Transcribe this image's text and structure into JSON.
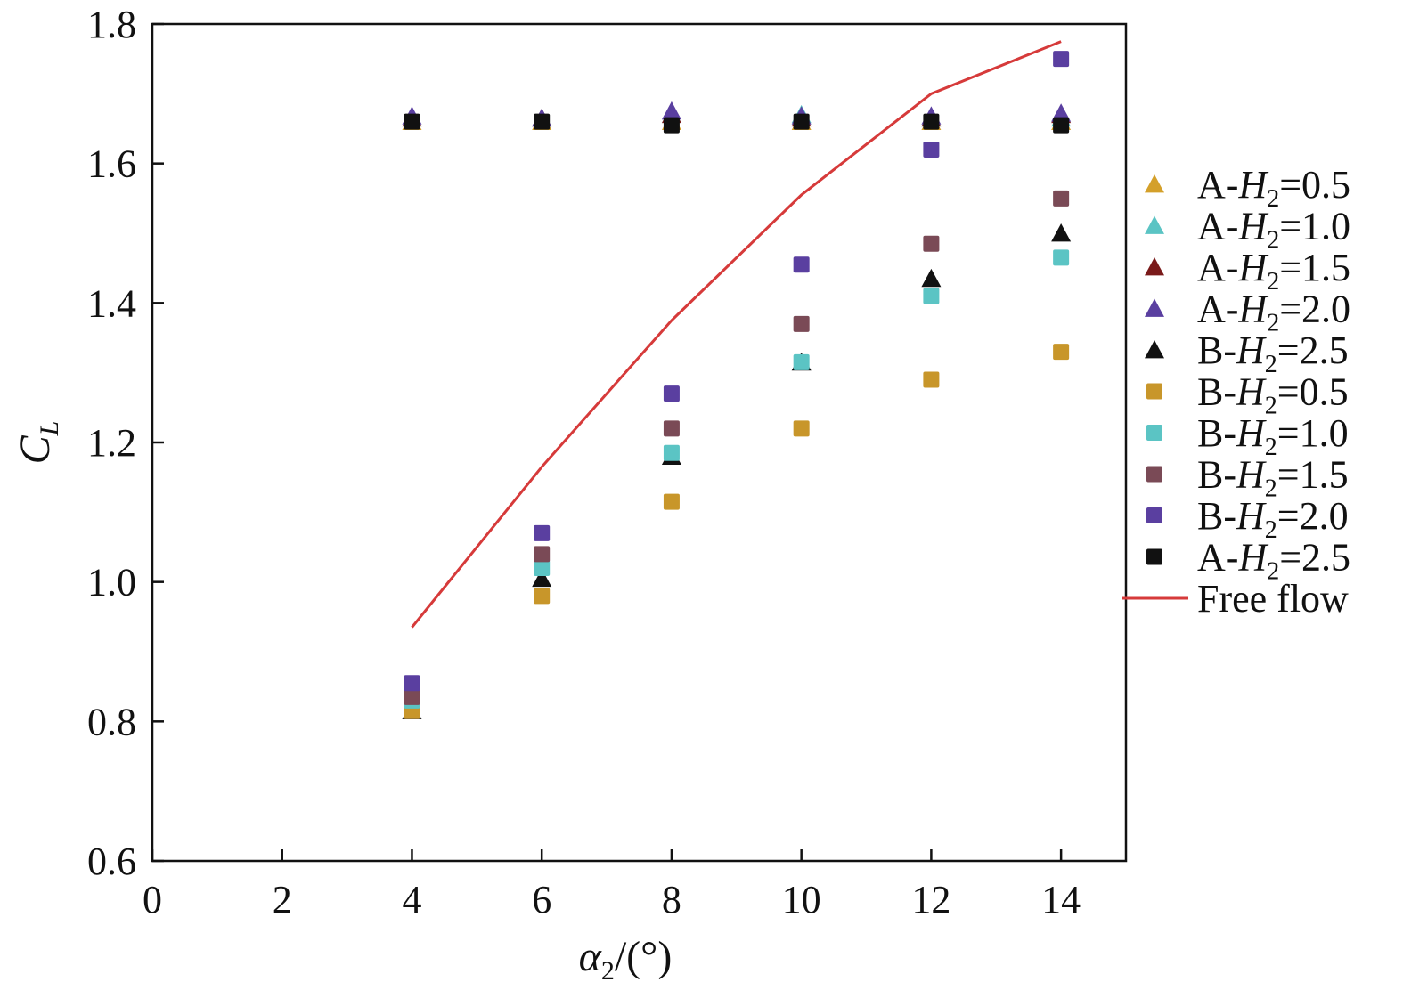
{
  "chart_data": {
    "type": "scatter",
    "xlabel": {
      "base": "α",
      "sub": "2",
      "tail": "/(°)"
    },
    "ylabel": {
      "base": "C",
      "sub": "L"
    },
    "xlim": [
      0,
      15
    ],
    "ylim": [
      0.6,
      1.8
    ],
    "xticks": [
      0,
      2,
      4,
      6,
      8,
      10,
      12,
      14
    ],
    "xtick_labels": [
      "0",
      "2",
      "4",
      "6",
      "8",
      "10",
      "12",
      "14"
    ],
    "yticks": [
      0.6,
      0.8,
      1.0,
      1.2,
      1.4,
      1.6,
      1.8
    ],
    "ytick_labels": [
      "0.6",
      "0.8",
      "1.0",
      "1.2",
      "1.4",
      "1.6",
      "1.8"
    ],
    "x": [
      4,
      6,
      8,
      10,
      12,
      14
    ],
    "series": [
      {
        "name": "A-H2=0.5",
        "prefix": "A-",
        "var": "H",
        "sub": "2",
        "val": "=0.5",
        "marker": "triangle",
        "color": "#d4a02a",
        "x": [
          4,
          6,
          8,
          10,
          12,
          14
        ],
        "values": [
          1.66,
          1.66,
          1.66,
          1.66,
          1.66,
          1.66
        ]
      },
      {
        "name": "A-H2=1.0",
        "prefix": "A-",
        "var": "H",
        "sub": "2",
        "val": "=1.0",
        "marker": "triangle",
        "color": "#5bc4c4",
        "x": [
          4,
          6,
          8,
          10,
          12,
          14
        ],
        "values": [
          1.665,
          1.665,
          1.67,
          1.67,
          1.665,
          1.665
        ]
      },
      {
        "name": "A-H2=1.5",
        "prefix": "A-",
        "var": "H",
        "sub": "2",
        "val": "=1.5",
        "marker": "triangle",
        "color": "#7a1a1a",
        "x": [
          4,
          6,
          8,
          10,
          12,
          14
        ],
        "values": [
          1.665,
          1.665,
          1.67,
          1.665,
          1.665,
          1.67
        ]
      },
      {
        "name": "A-H2=2.0",
        "prefix": "A-",
        "var": "H",
        "sub": "2",
        "val": "=2.0",
        "marker": "triangle",
        "color": "#5a3fa0",
        "x": [
          4,
          6,
          8,
          10,
          12,
          14
        ],
        "values": [
          1.668,
          1.665,
          1.675,
          1.668,
          1.668,
          1.672
        ]
      },
      {
        "name": "B-H2=2.5",
        "prefix": "B-",
        "var": "H",
        "sub": "2",
        "val": "=2.5",
        "marker": "triangle",
        "color": "#111111",
        "x": [
          4,
          6,
          8,
          10,
          12,
          14
        ],
        "values": [
          0.815,
          1.005,
          1.18,
          1.315,
          1.435,
          1.5
        ]
      },
      {
        "name": "B-H2=0.5",
        "prefix": "B-",
        "var": "H",
        "sub": "2",
        "val": "=0.5",
        "marker": "square",
        "color": "#c8962a",
        "x": [
          4,
          6,
          8,
          10,
          12,
          14
        ],
        "values": [
          0.815,
          0.98,
          1.115,
          1.22,
          1.29,
          1.33
        ]
      },
      {
        "name": "B-H2=1.0",
        "prefix": "B-",
        "var": "H",
        "sub": "2",
        "val": "=1.0",
        "marker": "square",
        "color": "#5bc4c4",
        "x": [
          4,
          6,
          8,
          10,
          12,
          14
        ],
        "values": [
          0.83,
          1.02,
          1.185,
          1.315,
          1.41,
          1.465
        ]
      },
      {
        "name": "B-H2=1.5",
        "prefix": "B-",
        "var": "H",
        "sub": "2",
        "val": "=1.5",
        "marker": "square",
        "color": "#7a4a56",
        "x": [
          4,
          6,
          8,
          10,
          12,
          14
        ],
        "values": [
          0.835,
          1.04,
          1.22,
          1.37,
          1.485,
          1.55
        ]
      },
      {
        "name": "B-H2=2.0",
        "prefix": "B-",
        "var": "H",
        "sub": "2",
        "val": "=2.0",
        "marker": "square",
        "color": "#5a3fa0",
        "x": [
          4,
          6,
          8,
          10,
          12,
          14
        ],
        "values": [
          0.855,
          1.07,
          1.27,
          1.455,
          1.62,
          1.75
        ]
      },
      {
        "name": "A-H2=2.5",
        "prefix": "A-",
        "var": "H",
        "sub": "2",
        "val": "=2.5",
        "marker": "square",
        "color": "#111111",
        "x": [
          4,
          6,
          8,
          10,
          12,
          14
        ],
        "values": [
          1.66,
          1.66,
          1.655,
          1.66,
          1.66,
          1.655
        ]
      },
      {
        "name": "Free flow",
        "label": "Free flow",
        "marker": "line",
        "color": "#d63a3a",
        "x": [
          4,
          6,
          8,
          10,
          12,
          14
        ],
        "values": [
          0.935,
          1.165,
          1.375,
          1.555,
          1.7,
          1.775
        ]
      }
    ]
  }
}
